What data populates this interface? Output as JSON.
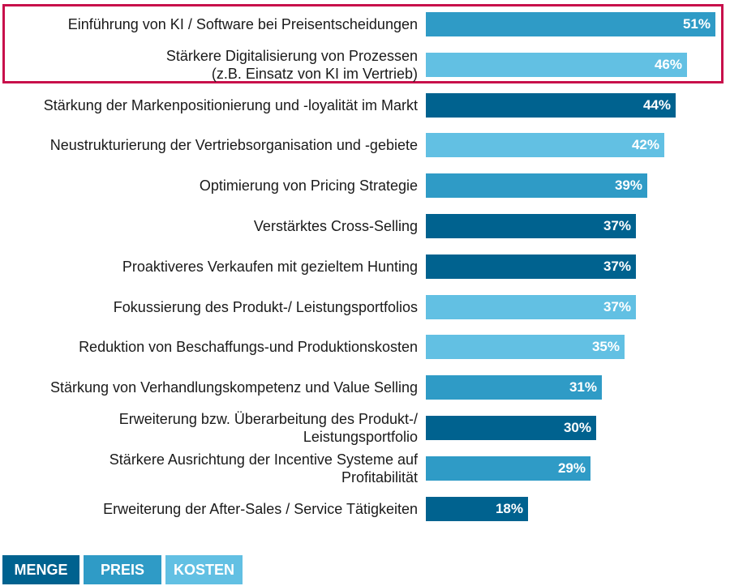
{
  "colors": {
    "menge": "#00628f",
    "preis": "#2f9bc6",
    "kosten": "#62c0e3",
    "highlight": "#c8104b"
  },
  "legend": [
    {
      "label": "MENGE",
      "color": "#00628f"
    },
    {
      "label": "PREIS",
      "color": "#2f9bc6"
    },
    {
      "label": "KOSTEN",
      "color": "#62c0e3"
    }
  ],
  "chart_data": {
    "type": "bar",
    "orientation": "horizontal",
    "xlim": [
      0,
      51
    ],
    "highlighted_categories": [
      0,
      1
    ],
    "categories": [
      {
        "lines": [
          "Einführung von KI / Software bei Preisentscheidungen"
        ],
        "value": 51,
        "value_label": "51%",
        "group": "PREIS"
      },
      {
        "lines": [
          "Stärkere Digitalisierung von Prozessen",
          "(z.B. Einsatz von KI im Vertrieb)"
        ],
        "value": 46,
        "value_label": "46%",
        "group": "KOSTEN"
      },
      {
        "lines": [
          "Stärkung der Markenpositionierung und -loyalität im Markt"
        ],
        "value": 44,
        "value_label": "44%",
        "group": "MENGE"
      },
      {
        "lines": [
          "Neustrukturierung der Vertriebsorganisation und -gebiete"
        ],
        "value": 42,
        "value_label": "42%",
        "group": "KOSTEN"
      },
      {
        "lines": [
          "Optimierung von Pricing Strategie"
        ],
        "value": 39,
        "value_label": "39%",
        "group": "PREIS"
      },
      {
        "lines": [
          "Verstärktes Cross-Selling"
        ],
        "value": 37,
        "value_label": "37%",
        "group": "MENGE"
      },
      {
        "lines": [
          "Proaktiveres Verkaufen mit gezieltem Hunting"
        ],
        "value": 37,
        "value_label": "37%",
        "group": "MENGE"
      },
      {
        "lines": [
          "Fokussierung des Produkt-/ Leistungsportfolios"
        ],
        "value": 37,
        "value_label": "37%",
        "group": "KOSTEN"
      },
      {
        "lines": [
          "Reduktion von Beschaffungs-und Produktionskosten"
        ],
        "value": 35,
        "value_label": "35%",
        "group": "KOSTEN"
      },
      {
        "lines": [
          "Stärkung von Verhandlungskompetenz und Value Selling"
        ],
        "value": 31,
        "value_label": "31%",
        "group": "PREIS"
      },
      {
        "lines": [
          "Erweiterung bzw. Überarbeitung des Produkt-/",
          "Leistungsportfolio"
        ],
        "value": 30,
        "value_label": "30%",
        "group": "MENGE"
      },
      {
        "lines": [
          "Stärkere Ausrichtung der Incentive Systeme auf",
          "Profitabilität"
        ],
        "value": 29,
        "value_label": "29%",
        "group": "PREIS"
      },
      {
        "lines": [
          "Erweiterung der After-Sales / Service Tätigkeiten"
        ],
        "value": 18,
        "value_label": "18%",
        "group": "MENGE"
      }
    ]
  }
}
